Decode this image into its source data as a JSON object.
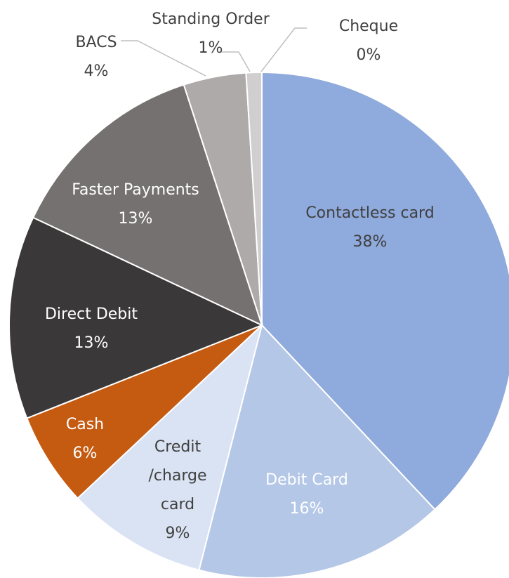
{
  "chart_data": {
    "type": "pie",
    "categories": [
      "Contactless card",
      "Debit Card",
      "Credit /charge card",
      "Cash",
      "Direct Debit",
      "Faster Payments",
      "BACS",
      "Standing Order",
      "Cheque"
    ],
    "values": [
      38,
      16,
      9,
      6,
      13,
      13,
      4,
      1,
      0
    ],
    "value_labels": [
      "38%",
      "16%",
      "9%",
      "6%",
      "13%",
      "13%",
      "4%",
      "1%",
      "0%"
    ],
    "colors": [
      "#8faadc",
      "#b4c7e7",
      "#dae3f3",
      "#c55a11",
      "#3a3838",
      "#767171",
      "#aeaaaa",
      "#d0cece",
      "#e7e6e6"
    ]
  }
}
